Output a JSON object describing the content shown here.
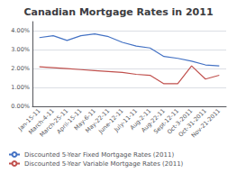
{
  "chart_data": {
    "type": "line",
    "title": "Canadian Mortgage Rates in 2011",
    "categories": [
      "Jan-15-11",
      "March-4-11",
      "March-25-11",
      "April-15-11",
      "May-6-11",
      "May-22-11",
      "June-12-11",
      "July-11-11",
      "Aug-2-11",
      "Aug-22-11",
      "Sept-12-11",
      "Oct-3-2011",
      "Oct-31-2011",
      "Nov-21-2011"
    ],
    "series": [
      {
        "name": "Discounted 5-Year Fixed Mortgage Rates (2011)",
        "color": "#4472C4",
        "values": [
          3.65,
          3.75,
          3.5,
          3.75,
          3.85,
          3.7,
          3.4,
          3.2,
          3.1,
          2.65,
          2.55,
          2.4,
          2.2,
          2.15
        ]
      },
      {
        "name": "Discounted 5-Year Variable Mortgage Rates (2011)",
        "color": "#C0504D",
        "values": [
          2.1,
          2.05,
          2.0,
          1.95,
          1.9,
          1.85,
          1.8,
          1.7,
          1.65,
          1.2,
          1.2,
          2.15,
          1.45,
          1.65
        ]
      }
    ],
    "ylim": [
      0.0,
      4.5
    ],
    "yticks": [
      {
        "value": 0.0,
        "label": "0.00%"
      },
      {
        "value": 1.0,
        "label": "1.00%"
      },
      {
        "value": 2.0,
        "label": "2.00%"
      },
      {
        "value": 3.0,
        "label": "3.00%"
      },
      {
        "value": 4.0,
        "label": "4.00%"
      }
    ],
    "grid": true,
    "legend": "lower left"
  }
}
